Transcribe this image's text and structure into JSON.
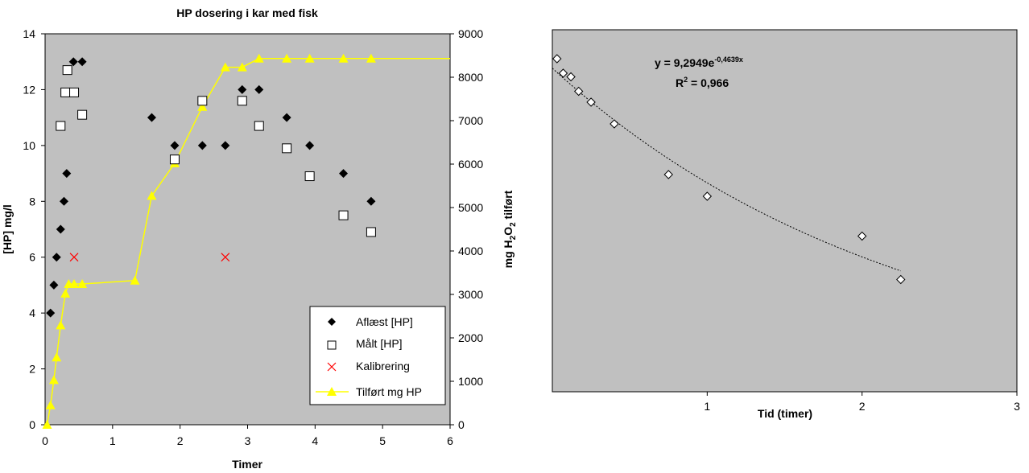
{
  "colors": {
    "plot_bg": "#c0c0c0",
    "supply_line": "#ffff00",
    "calibration": "#ff0000",
    "trend_points": "#000000"
  },
  "chart_data": [
    {
      "type": "scatter",
      "title": "HP dosering i kar med fisk",
      "xlabel": "Timer",
      "ylabel": "[HP] mg/l",
      "y2label": "mg H2O2 tilført",
      "y2label_parts": [
        "mg H",
        "2",
        "O",
        "2",
        " tilført"
      ],
      "xlim": [
        0,
        6
      ],
      "ylim": [
        0,
        14
      ],
      "y2lim": [
        0,
        9000
      ],
      "xticks": [
        0,
        1,
        2,
        3,
        4,
        5,
        6
      ],
      "yticks": [
        0,
        2,
        4,
        6,
        8,
        10,
        12,
        14
      ],
      "y2ticks": [
        0,
        1000,
        2000,
        3000,
        4000,
        5000,
        6000,
        7000,
        8000,
        9000
      ],
      "grid": false,
      "legend": "bottom-right",
      "series": [
        {
          "name": "Aflæst [HP]",
          "marker": "diamond",
          "axis": "left",
          "x": [
            0.08,
            0.13,
            0.17,
            0.23,
            0.28,
            0.32,
            0.42,
            0.55,
            1.58,
            1.92,
            2.33,
            2.67,
            2.92,
            3.17,
            3.58,
            3.92,
            4.42,
            4.83
          ],
          "y": [
            4,
            5,
            6,
            7,
            8,
            9,
            13,
            13,
            11,
            10,
            10,
            10,
            12,
            12,
            11,
            10,
            9,
            8
          ]
        },
        {
          "name": "Målt [HP]",
          "marker": "square",
          "axis": "left",
          "x": [
            0.23,
            0.3,
            0.33,
            0.43,
            0.55,
            1.92,
            2.33,
            2.92,
            3.17,
            3.58,
            3.92,
            4.42,
            4.83
          ],
          "y": [
            10.7,
            11.9,
            12.7,
            11.9,
            11.1,
            9.5,
            11.6,
            11.6,
            10.7,
            9.9,
            8.9,
            7.5,
            6.9
          ]
        },
        {
          "name": "Kalibrering",
          "marker": "x",
          "axis": "left",
          "x": [
            0.43,
            2.67
          ],
          "y": [
            6,
            6
          ]
        },
        {
          "name": "Tilført mg HP",
          "marker": "triangle",
          "line": true,
          "axis": "right",
          "x": [
            0.03,
            0.08,
            0.13,
            0.17,
            0.23,
            0.3,
            0.35,
            0.43,
            0.55,
            1.33,
            1.58,
            1.92,
            2.33,
            2.67,
            2.92,
            3.17,
            3.58,
            3.92,
            4.42,
            4.83,
            6.0
          ],
          "y": [
            0,
            450,
            1030,
            1550,
            2290,
            3020,
            3240,
            3240,
            3240,
            3320,
            5270,
            6020,
            7320,
            8230,
            8230,
            8430,
            8430,
            8430,
            8430,
            8430,
            8430
          ],
          "markers_count": 20
        }
      ]
    },
    {
      "type": "scatter",
      "title": "",
      "xlabel": "Tid (timer)",
      "ylabel": "",
      "xlim": [
        0,
        3
      ],
      "xticks": [
        1,
        2,
        3
      ],
      "ylim": [
        0,
        10
      ],
      "grid": false,
      "annotation": {
        "equation_base": "y = 9,2949e",
        "equation_exp": "-0,4639x",
        "r2_base": "R",
        "r2_sup": "2",
        "r2_value": " = 0,966"
      },
      "series": [
        {
          "name": "",
          "marker": "diamond-open",
          "x": [
            0.03,
            0.07,
            0.12,
            0.17,
            0.25,
            0.4,
            0.75,
            1.0,
            2.0,
            2.25
          ],
          "y": [
            9.2,
            8.8,
            8.7,
            8.3,
            8.0,
            7.4,
            6.0,
            5.4,
            4.3,
            3.1
          ]
        },
        {
          "name": "",
          "type": "trend",
          "style": "dotted",
          "x_range": [
            0.0,
            2.25
          ]
        }
      ]
    }
  ]
}
